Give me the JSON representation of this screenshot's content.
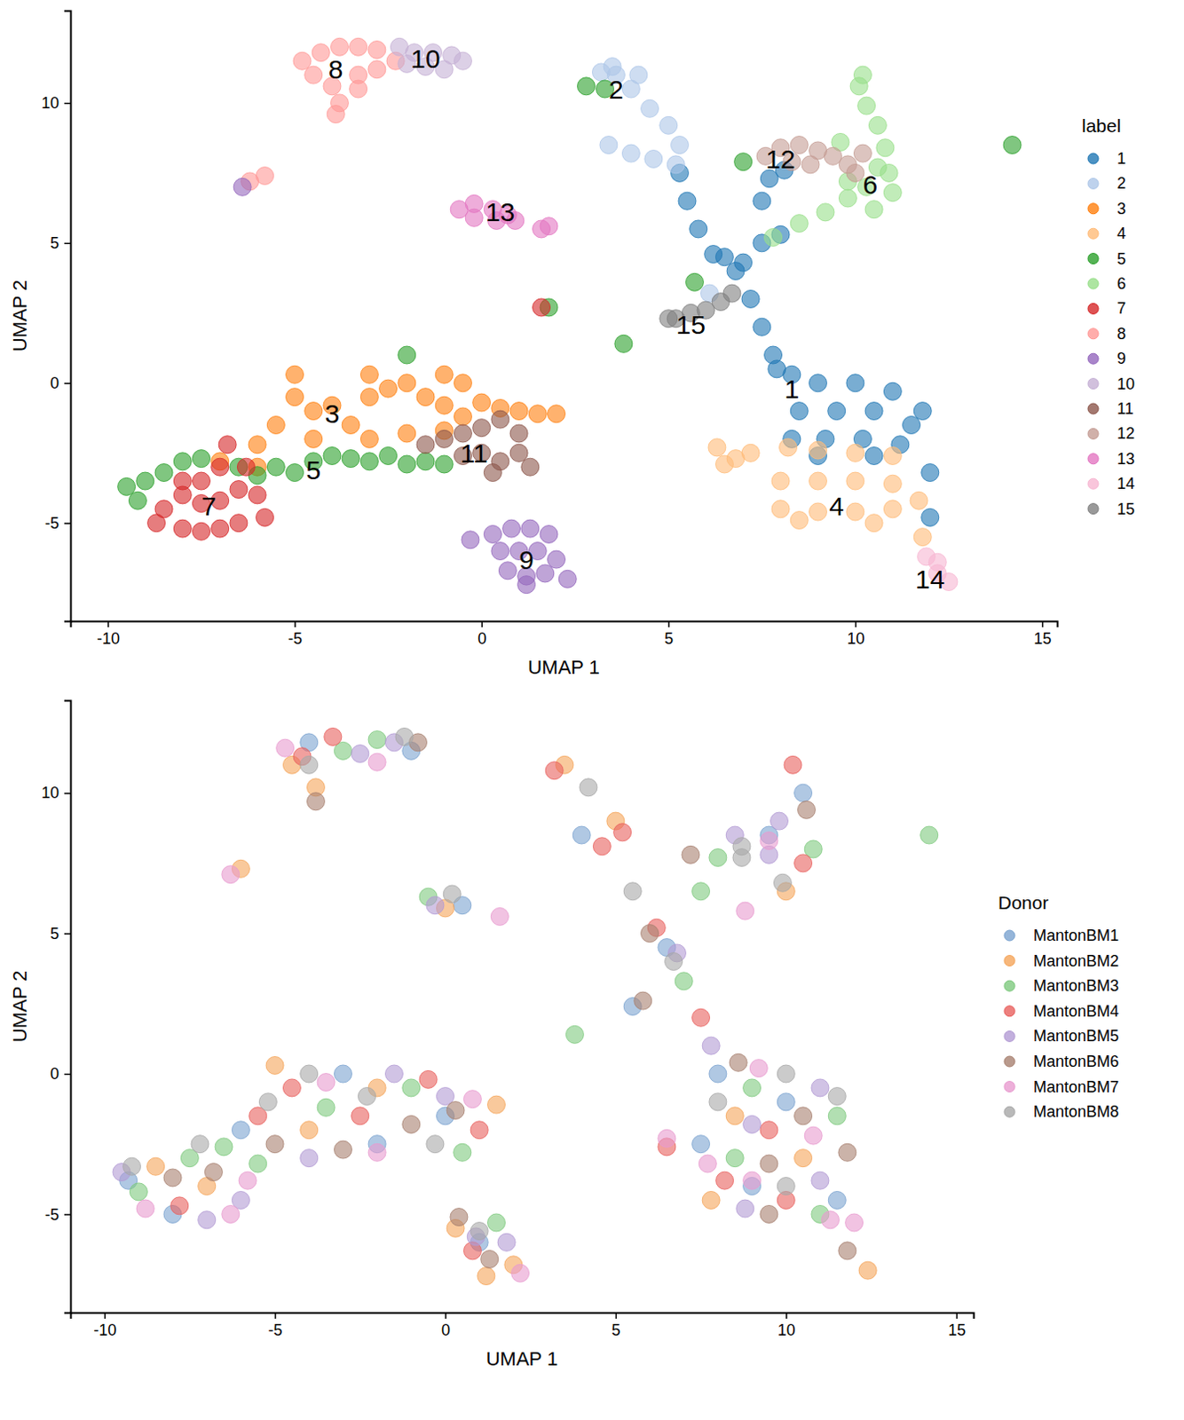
{
  "chart_data": [
    {
      "type": "scatter",
      "x_label": "UMAP 1",
      "y_label": "UMAP 2",
      "legend_title": "label",
      "legend": "right",
      "xlim": [
        -11,
        15.4
      ],
      "xticks": [
        -10,
        -5,
        0,
        5,
        10,
        15
      ],
      "ylim": [
        -8.5,
        13.3
      ],
      "yticks": [
        -5,
        0,
        5,
        10
      ],
      "annotations": [
        {
          "text": "1",
          "x": 8.3,
          "y": -0.2
        },
        {
          "text": "2",
          "x": 3.6,
          "y": 10.5
        },
        {
          "text": "3",
          "x": -4,
          "y": -1.1
        },
        {
          "text": "4",
          "x": 9.5,
          "y": -4.4
        },
        {
          "text": "5",
          "x": -4.5,
          "y": -3.1
        },
        {
          "text": "6",
          "x": 10.4,
          "y": 7.1
        },
        {
          "text": "7",
          "x": -7.3,
          "y": -4.4
        },
        {
          "text": "8",
          "x": -3.9,
          "y": 11.2
        },
        {
          "text": "9",
          "x": 1.2,
          "y": -6.3
        },
        {
          "text": "10",
          "x": -1.5,
          "y": 11.6
        },
        {
          "text": "11",
          "x": -0.2,
          "y": -2.5
        },
        {
          "text": "12",
          "x": 8,
          "y": 8
        },
        {
          "text": "13",
          "x": 0.5,
          "y": 6.1
        },
        {
          "text": "14",
          "x": 12,
          "y": -7
        },
        {
          "text": "15",
          "x": 5.6,
          "y": 2.1
        }
      ],
      "series": [
        {
          "name": "1",
          "color": "#1f77b4",
          "x": [
            8.3,
            9,
            10,
            11,
            11.8,
            8.5,
            9.5,
            10.5,
            11.5,
            8.3,
            9.2,
            10.2,
            11.2,
            12,
            9,
            10.5,
            7.8,
            7.5,
            7.2,
            6.8,
            6.5,
            7,
            6.2,
            7.5,
            8,
            5.8,
            5.5,
            5.3,
            7.5,
            7.7,
            8.1,
            7.9,
            12
          ],
          "y": [
            0.3,
            0,
            0,
            -0.3,
            -1,
            -1,
            -1,
            -1,
            -1.5,
            -2,
            -2,
            -2,
            -2.2,
            -3.2,
            -2.6,
            -2.6,
            1,
            2,
            3,
            4,
            4.5,
            4.3,
            4.6,
            5,
            5.3,
            5.5,
            6.5,
            7.5,
            6.5,
            7.3,
            7.6,
            0.5,
            -4.8
          ]
        },
        {
          "name": "2",
          "color": "#aec7e8",
          "x": [
            3.2,
            3.6,
            4,
            4.5,
            5,
            5.3,
            4.6,
            4,
            3.4,
            3.5,
            4.2,
            5.2,
            6.1
          ],
          "y": [
            11.1,
            11,
            10.5,
            9.8,
            9.2,
            8.5,
            8,
            8.2,
            8.5,
            11.3,
            11,
            7.8,
            3.2
          ]
        },
        {
          "name": "3",
          "color": "#ff7f0e",
          "x": [
            -6,
            -5.5,
            -5,
            -5,
            -4.5,
            -4,
            -3.5,
            -3,
            -2.5,
            -2,
            -1.5,
            -1,
            -0.5,
            -0.5,
            0,
            0.5,
            1,
            1.5,
            2,
            -4.5,
            -3,
            -2,
            -1,
            -6,
            -7,
            -3,
            -1
          ],
          "y": [
            -2.2,
            -1.5,
            -0.5,
            0.3,
            -1,
            -0.8,
            -1.5,
            -0.5,
            -0.2,
            0,
            -0.5,
            -0.8,
            0,
            -1.2,
            -0.7,
            -0.9,
            -1,
            -1.1,
            -1.1,
            -2,
            -2,
            -1.8,
            -1.7,
            -3,
            -2.8,
            0.3,
            0.3
          ]
        },
        {
          "name": "4",
          "color": "#ffbb78",
          "x": [
            8.2,
            9,
            10,
            11,
            8,
            9,
            10,
            11,
            8,
            9,
            10,
            11,
            11.7,
            8.5,
            10.5,
            11.8,
            6.3,
            6.8,
            6.5,
            7.2
          ],
          "y": [
            -2.3,
            -2.4,
            -2.5,
            -2.6,
            -3.5,
            -3.5,
            -3.5,
            -3.6,
            -4.5,
            -4.6,
            -4.6,
            -4.5,
            -4.2,
            -4.9,
            -5,
            -5.5,
            -2.3,
            -2.7,
            -2.9,
            -2.5
          ]
        },
        {
          "name": "5",
          "color": "#2ca02c",
          "x": [
            -9.5,
            -9,
            -8.5,
            -8,
            -7.5,
            -6.5,
            -6,
            -5.5,
            -5,
            -4.5,
            -4,
            -3.5,
            -3,
            -2.5,
            -2,
            -1.5,
            -1,
            -9.2,
            -2,
            3.3,
            2.8,
            7,
            5.7,
            3.8,
            14.2,
            1.8
          ],
          "y": [
            -3.7,
            -3.5,
            -3.2,
            -2.8,
            -2.7,
            -3,
            -3.3,
            -3,
            -3.2,
            -2.8,
            -2.6,
            -2.7,
            -2.8,
            -2.6,
            -2.9,
            -2.8,
            -2.9,
            -4.2,
            1,
            10.5,
            10.6,
            7.9,
            3.6,
            1.4,
            8.5,
            2.7
          ]
        },
        {
          "name": "6",
          "color": "#98df8a",
          "x": [
            7.8,
            8.5,
            9.2,
            9.8,
            10.3,
            10.6,
            10.8,
            10.6,
            10.3,
            10.1,
            10.2,
            9.8,
            10.9,
            9.6,
            10.5,
            11
          ],
          "y": [
            5.2,
            5.7,
            6.1,
            6.6,
            7,
            7.7,
            8.4,
            9.2,
            9.9,
            10.6,
            11,
            7.2,
            7.5,
            8.6,
            6.2,
            6.8
          ]
        },
        {
          "name": "7",
          "color": "#d62728",
          "x": [
            -8.5,
            -8,
            -7.5,
            -7,
            -6.8,
            -6.3,
            -6,
            -6.5,
            -7,
            -7.5,
            -8,
            -8.7,
            -7.5,
            -7,
            -6.5,
            -8,
            -5.8,
            1.6
          ],
          "y": [
            -4.5,
            -4,
            -3.5,
            -3,
            -2.2,
            -3,
            -4,
            -5,
            -5.2,
            -5.3,
            -5.2,
            -5,
            -4.3,
            -4.2,
            -3.8,
            -3.5,
            -4.8,
            2.7
          ]
        },
        {
          "name": "8",
          "color": "#ff9896",
          "x": [
            -4.8,
            -4.3,
            -3.8,
            -3.3,
            -2.8,
            -4.5,
            -4,
            -3.8,
            -3.9,
            -3.3,
            -2.8,
            -2.3,
            -3.3,
            -6.2,
            -5.8
          ],
          "y": [
            11.5,
            11.8,
            12,
            12,
            11.9,
            11,
            10.6,
            10,
            9.6,
            11,
            11.2,
            11.5,
            10.5,
            7.2,
            7.4
          ]
        },
        {
          "name": "9",
          "color": "#9467bd",
          "x": [
            0.3,
            0.8,
            1.3,
            1.8,
            0.5,
            1,
            1.5,
            2,
            0.7,
            1.2,
            1.7,
            2.3,
            1.2,
            -0.3,
            -6.4
          ],
          "y": [
            -5.4,
            -5.2,
            -5.2,
            -5.4,
            -6,
            -6,
            -6,
            -6.3,
            -6.7,
            -6.9,
            -6.8,
            -7,
            -7.2,
            -5.6,
            7
          ]
        },
        {
          "name": "10",
          "color": "#c5b0d5",
          "x": [
            -2.2,
            -1.8,
            -1.3,
            -0.8,
            -0.5,
            -1.5,
            -2,
            -1
          ],
          "y": [
            12,
            11.8,
            11.8,
            11.7,
            11.5,
            11.3,
            11.4,
            11.2
          ]
        },
        {
          "name": "11",
          "color": "#8c564b",
          "x": [
            -1.5,
            -1,
            -0.5,
            0,
            0.5,
            1,
            1,
            0.5,
            0,
            -0.5,
            1.3,
            0.3
          ],
          "y": [
            -2.2,
            -2,
            -1.8,
            -1.6,
            -1.3,
            -1.8,
            -2.5,
            -2.8,
            -2.5,
            -2.6,
            -3,
            -3.2
          ]
        },
        {
          "name": "12",
          "color": "#c49c94",
          "x": [
            7.6,
            8,
            8.5,
            9,
            9.4,
            9.8,
            10,
            8.3,
            8.8,
            10.2
          ],
          "y": [
            8.1,
            8.4,
            8.5,
            8.3,
            8.1,
            7.8,
            7.5,
            7.9,
            7.8,
            8.2
          ]
        },
        {
          "name": "13",
          "color": "#e377c2",
          "x": [
            -0.6,
            -0.2,
            0.3,
            0.7,
            0.9,
            -0.2,
            0.4,
            1.8,
            1.6
          ],
          "y": [
            6.2,
            6.4,
            6.2,
            6,
            5.8,
            5.9,
            5.8,
            5.6,
            5.5
          ]
        },
        {
          "name": "14",
          "color": "#f7b6d2",
          "x": [
            11.9,
            12.2,
            12.5,
            12.2
          ],
          "y": [
            -6.2,
            -6.8,
            -7.1,
            -6.4
          ]
        },
        {
          "name": "15",
          "color": "#7f7f7f",
          "x": [
            5.2,
            5.6,
            6,
            6.4,
            6.7,
            5
          ],
          "y": [
            2.3,
            2.5,
            2.6,
            2.9,
            3.2,
            2.3
          ]
        }
      ]
    },
    {
      "type": "scatter",
      "x_label": "UMAP 1",
      "y_label": "UMAP 2",
      "legend_title": "Donor",
      "legend": "right",
      "xlim": [
        -11,
        15.5
      ],
      "xticks": [
        -10,
        -5,
        0,
        5,
        10,
        15
      ],
      "ylim": [
        -8.5,
        13.3
      ],
      "yticks": [
        -5,
        0,
        5,
        10
      ],
      "series": [
        {
          "name": "MantonBM1",
          "color": "#7ba3d0",
          "x": [
            -9.3,
            -6,
            -3,
            0,
            -4,
            -1,
            1,
            0.5,
            4,
            6.5,
            8,
            10,
            9,
            11.5,
            9.5,
            10.5,
            -8,
            -2,
            5.5,
            7.5
          ],
          "y": [
            -3.8,
            -2,
            0,
            -1.5,
            11.8,
            11.5,
            -6,
            6,
            8.5,
            4.5,
            0,
            -1,
            -4,
            -4.5,
            8.5,
            10,
            -5,
            -2.5,
            2.4,
            -2.5
          ]
        },
        {
          "name": "MantonBM2",
          "color": "#f5a55a",
          "x": [
            -8.5,
            -5,
            -2,
            1.5,
            -4.5,
            -3.8,
            0.3,
            1.2,
            -6,
            0,
            3.5,
            5,
            7.8,
            10.5,
            12.4,
            8.5,
            -7,
            -4,
            10,
            2
          ],
          "y": [
            -3.3,
            0.3,
            -0.5,
            -1.1,
            11,
            10.2,
            -5.5,
            -7.2,
            7.3,
            5.9,
            11,
            9,
            -4.5,
            -3,
            -7,
            -1.5,
            -4,
            -2,
            6.5,
            -6.8
          ]
        },
        {
          "name": "MantonBM3",
          "color": "#7ec97e",
          "x": [
            -9,
            -7.5,
            -6.5,
            -5.5,
            -3.5,
            -1,
            0.5,
            -3,
            -2,
            1.5,
            7,
            7.5,
            9,
            11.5,
            8.5,
            11,
            8,
            10.8,
            3.8,
            -0.5,
            14.2
          ],
          "y": [
            -4.2,
            -3,
            -2.6,
            -3.2,
            -1.2,
            -0.5,
            -2.8,
            11.5,
            11.9,
            -5.3,
            3.3,
            6.5,
            -0.5,
            -1.5,
            -3,
            -5,
            7.7,
            8,
            1.4,
            6.3,
            8.5
          ]
        },
        {
          "name": "MantonBM4",
          "color": "#e8605e",
          "x": [
            -7.8,
            -5.5,
            -4.5,
            -2.5,
            -0.5,
            1,
            -3.3,
            -4.2,
            0.8,
            3.2,
            4.6,
            5.2,
            6.2,
            7.5,
            10.5,
            10.2,
            9.5,
            10,
            8.2,
            6.5
          ],
          "y": [
            -4.7,
            -1.5,
            -0.5,
            -1.5,
            -0.2,
            -2,
            12,
            11.3,
            -6.3,
            10.8,
            8.1,
            8.6,
            5.2,
            2,
            7.5,
            11,
            -2,
            -4.5,
            -3.8,
            -2.6
          ]
        },
        {
          "name": "MantonBM5",
          "color": "#b39bd4",
          "x": [
            -9.5,
            -7,
            -6,
            -4,
            -1.5,
            0,
            -2.5,
            -1.5,
            1.8,
            0.9,
            6.8,
            8.5,
            9.5,
            11,
            9,
            11,
            8.8,
            -0.3,
            7.8,
            9.8
          ],
          "y": [
            -3.5,
            -5.2,
            -4.5,
            -3,
            0,
            -0.8,
            11.4,
            11.8,
            -6,
            -5.8,
            4.3,
            8.5,
            7.8,
            -0.5,
            -1.8,
            -3.8,
            -4.8,
            6,
            1,
            9
          ]
        },
        {
          "name": "MantonBM6",
          "color": "#a88170",
          "x": [
            -8,
            -6.8,
            -5,
            -3,
            -1,
            0.3,
            -3.8,
            -0.8,
            1.3,
            0.4,
            6,
            7.2,
            10.6,
            8.6,
            10.5,
            11.8,
            9.5,
            9.5,
            5.8,
            11.8
          ],
          "y": [
            -3.7,
            -3.5,
            -2.5,
            -2.7,
            -1.8,
            -1.3,
            9.7,
            11.8,
            -6.6,
            -5.1,
            5,
            7.8,
            9.4,
            0.4,
            -1.5,
            -2.8,
            -3.2,
            -5,
            2.6,
            -6.3
          ]
        },
        {
          "name": "MantonBM7",
          "color": "#e89bcf",
          "x": [
            -8.8,
            -6.3,
            -5.8,
            -3.5,
            -2,
            0.8,
            -4.7,
            -2,
            2.2,
            1.6,
            -6.3,
            8.8,
            9.5,
            9.2,
            10.8,
            9,
            11.3,
            7.7,
            6.5,
            12
          ],
          "y": [
            -4.8,
            -5,
            -3.8,
            -0.3,
            -2.8,
            -0.9,
            11.6,
            11.1,
            -7.1,
            5.6,
            7.1,
            5.8,
            8.3,
            0.2,
            -2.2,
            -3.8,
            -5.2,
            -3.2,
            -2.3,
            -5.3
          ]
        },
        {
          "name": "MantonBM8",
          "color": "#a8a8a8",
          "x": [
            -9.2,
            -7.2,
            -5.2,
            -4,
            -2.3,
            -0.3,
            -4,
            -1.2,
            1,
            0.2,
            5.5,
            4.2,
            6.7,
            8.7,
            9.9,
            8,
            10,
            11.5,
            10,
            8.7
          ],
          "y": [
            -3.3,
            -2.5,
            -1,
            0,
            -0.8,
            -2.5,
            11,
            12,
            -5.6,
            6.4,
            6.5,
            10.2,
            4,
            7.7,
            6.8,
            -1,
            0,
            -0.8,
            -4,
            8.1
          ]
        }
      ]
    }
  ]
}
